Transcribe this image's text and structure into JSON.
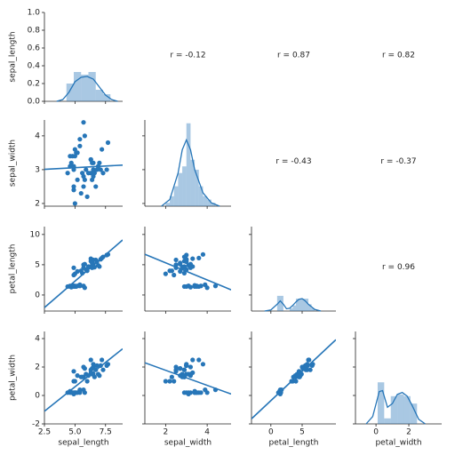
{
  "chart_data": {
    "type": "pairplot",
    "color": "#2776b8",
    "regression": true,
    "variables": [
      "sepal_length",
      "sepal_width",
      "petal_length",
      "petal_width"
    ],
    "x_axes": [
      {
        "xlim": [
          2.5,
          8.9
        ],
        "xticks": [
          2.5,
          {
            "value": 5,
            "label": "5.0"
          },
          7.5
        ]
      },
      {
        "xlim": [
          1.0,
          5.15
        ],
        "xticks": [
          2,
          4
        ]
      },
      {
        "xlim": [
          -3.1,
          10.4
        ],
        "xticks": [
          0,
          5
        ]
      },
      {
        "xlim": [
          -1.25,
          4.0
        ],
        "xticks": [
          0,
          2
        ]
      }
    ],
    "y_axes": [
      {
        "ylim": [
          0,
          1
        ],
        "yticks": [
          {
            "value": 0,
            "label": "0.0"
          },
          0.2,
          0.4,
          0.6,
          0.8,
          {
            "value": 1,
            "label": "1.0"
          }
        ]
      },
      {
        "ylim": [
          1.92,
          4.47
        ],
        "yticks": [
          2,
          3,
          4
        ]
      },
      {
        "ylim": [
          -2.65,
          11.3
        ],
        "yticks": [
          0,
          5,
          10
        ]
      },
      {
        "ylim": [
          -2,
          4.5
        ],
        "yticks": [
          -2,
          0,
          2,
          4
        ]
      }
    ],
    "points": [
      [
        5.1,
        4.9,
        4.7,
        4.6,
        5.0,
        5.4,
        4.6,
        5.0,
        4.4,
        4.9,
        5.4,
        4.8,
        5.8,
        5.7,
        5.2,
        7.0,
        6.4,
        6.9,
        5.5,
        6.5,
        5.7,
        6.3,
        4.9,
        6.6,
        5.2,
        5.0,
        5.9,
        6.0,
        6.1,
        5.6,
        6.3,
        5.8,
        7.1,
        6.3,
        6.5,
        7.6,
        4.9,
        7.3,
        6.7,
        7.2,
        6.5,
        6.4,
        6.8,
        5.7,
        7.7
      ],
      [
        3.5,
        3.0,
        3.2,
        3.1,
        3.6,
        3.9,
        3.4,
        3.4,
        2.9,
        3.1,
        3.7,
        3.4,
        4.0,
        4.4,
        3.5,
        3.2,
        3.2,
        3.1,
        2.3,
        2.8,
        2.8,
        3.3,
        2.4,
        2.9,
        2.7,
        2.0,
        3.0,
        2.2,
        2.9,
        2.9,
        3.3,
        2.7,
        3.0,
        2.9,
        3.0,
        3.0,
        2.5,
        2.9,
        2.5,
        3.6,
        3.2,
        2.7,
        3.0,
        2.5,
        3.8
      ],
      [
        1.4,
        1.4,
        1.3,
        1.5,
        1.4,
        1.7,
        1.4,
        1.5,
        1.4,
        1.5,
        1.5,
        1.6,
        1.2,
        1.5,
        1.5,
        4.7,
        4.5,
        4.9,
        4.0,
        4.6,
        4.5,
        4.7,
        3.3,
        4.6,
        3.9,
        3.5,
        4.2,
        4.0,
        4.7,
        3.6,
        6.0,
        5.1,
        5.9,
        5.6,
        5.8,
        6.6,
        4.5,
        6.3,
        5.8,
        6.1,
        5.1,
        5.3,
        5.5,
        5.0,
        6.7
      ],
      [
        0.2,
        0.2,
        0.2,
        0.2,
        0.2,
        0.4,
        0.3,
        0.2,
        0.2,
        0.1,
        0.2,
        0.2,
        0.2,
        0.4,
        0.2,
        1.4,
        1.5,
        1.5,
        1.3,
        1.5,
        1.3,
        1.6,
        1.0,
        1.3,
        1.4,
        1.0,
        1.5,
        1.0,
        1.4,
        1.3,
        2.5,
        1.9,
        2.1,
        1.8,
        2.2,
        2.1,
        1.7,
        1.8,
        1.8,
        2.5,
        2.0,
        1.9,
        2.1,
        2.0,
        2.2
      ]
    ],
    "diagonal": [
      {
        "bins": [
          4.3,
          4.9,
          5.5,
          6.1,
          6.7,
          7.3,
          7.9
        ],
        "values": [
          0.2,
          0.33,
          0.3,
          0.33,
          0.13,
          0.08
        ],
        "kde_x": [
          3.5,
          4.0,
          4.5,
          5.0,
          5.5,
          6.0,
          6.5,
          7.0,
          7.5,
          8.0,
          8.5
        ],
        "kde_y": [
          0,
          0.02,
          0.1,
          0.22,
          0.27,
          0.28,
          0.25,
          0.16,
          0.07,
          0.02,
          0
        ]
      },
      {
        "ylim": [
          0,
          1.3
        ],
        "bins": [
          2.0,
          2.2,
          2.4,
          2.6,
          2.8,
          3.0,
          3.2,
          3.4,
          3.6,
          3.8,
          4.0,
          4.2,
          4.4
        ],
        "values": [
          0.05,
          0.15,
          0.3,
          0.5,
          0.6,
          1.25,
          0.7,
          0.55,
          0.3,
          0.15,
          0.1,
          0.05
        ],
        "kde_x": [
          1.8,
          2.2,
          2.6,
          2.8,
          3.0,
          3.2,
          3.4,
          3.8,
          4.2,
          4.6
        ],
        "kde_y": [
          0,
          0.1,
          0.5,
          0.85,
          1.0,
          0.85,
          0.55,
          0.2,
          0.05,
          0
        ]
      },
      {
        "ylim": [
          0,
          1.5
        ],
        "bins": [
          1.0,
          1.5,
          2.0,
          2.5,
          3.0,
          3.5,
          4.0,
          4.5,
          5.0,
          5.5,
          6.0,
          6.5,
          7.0
        ],
        "values": [
          0.27,
          0.27,
          0,
          0,
          0.05,
          0.1,
          0.22,
          0.22,
          0.22,
          0.22,
          0.12,
          0.05
        ],
        "kde_x": [
          -1,
          0,
          1,
          1.5,
          2,
          2.5,
          3,
          3.5,
          4,
          4.5,
          5,
          5.5,
          6,
          7,
          8
        ],
        "kde_y": [
          0,
          0.02,
          0.12,
          0.18,
          0.12,
          0.04,
          0.05,
          0.1,
          0.16,
          0.21,
          0.22,
          0.18,
          0.12,
          0.03,
          0
        ]
      },
      {
        "ylim": [
          0,
          1.0
        ],
        "bins": [
          0.1,
          0.5,
          0.9,
          1.3,
          1.7,
          2.1,
          2.5
        ],
        "values": [
          0.45,
          0.06,
          0.3,
          0.32,
          0.3,
          0.22
        ],
        "kde_x": [
          -0.6,
          -0.2,
          0.2,
          0.4,
          0.7,
          1.0,
          1.3,
          1.6,
          1.9,
          2.2,
          2.6,
          3.0
        ],
        "kde_y": [
          0,
          0.08,
          0.35,
          0.36,
          0.18,
          0.22,
          0.32,
          0.34,
          0.3,
          0.2,
          0.05,
          0
        ]
      }
    ],
    "correlations": [
      "r = -0.12",
      "r = 0.87",
      "r = 0.82",
      "r = -0.43",
      "r = -0.37",
      "r = 0.96"
    ]
  }
}
